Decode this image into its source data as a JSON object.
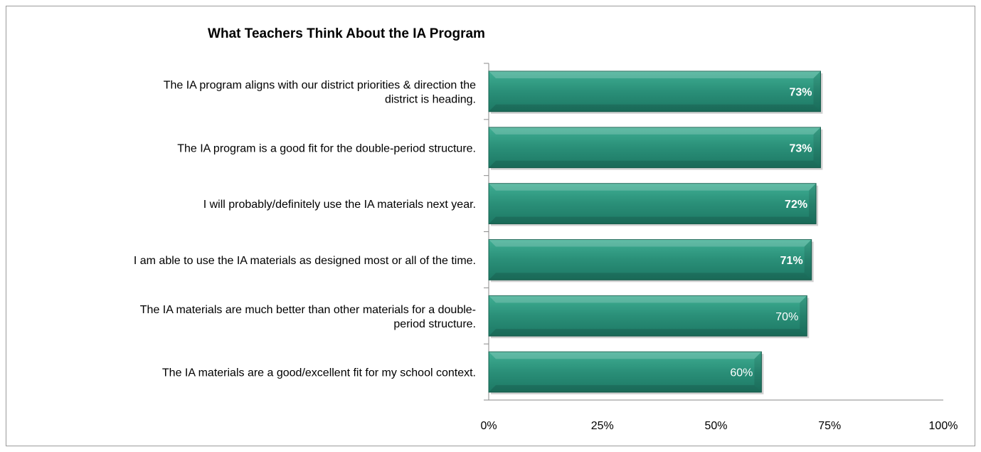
{
  "chart_data": {
    "type": "bar",
    "orientation": "horizontal",
    "title": "What Teachers Think About the IA Program",
    "categories": [
      [
        "The IA program aligns with our district priorities & direction the",
        "district is heading."
      ],
      [
        "The IA program is a good fit for the double-period structure."
      ],
      [
        "I will probably/definitely use the IA materials next year."
      ],
      [
        "I am able to use the IA materials as designed most or all of the time."
      ],
      [
        "The IA materials are much better than other materials for a double-",
        "period structure."
      ],
      [
        "The IA materials are a good/excellent fit for my school context."
      ]
    ],
    "values": [
      73,
      73,
      72,
      71,
      70,
      60
    ],
    "value_labels": [
      "73%",
      "73%",
      "72%",
      "71%",
      "70%",
      "60%"
    ],
    "value_label_bold": [
      true,
      true,
      true,
      true,
      false,
      false
    ],
    "xlim": [
      0,
      100
    ],
    "x_ticks": [
      0,
      25,
      50,
      75,
      100
    ],
    "x_tick_labels": [
      "0%",
      "25%",
      "50%",
      "75%",
      "100%"
    ],
    "xlabel": "",
    "ylabel": "",
    "grid": false,
    "legend": "none",
    "colors": {
      "bar_light": "#3fae93",
      "bar_mid": "#2a8f78",
      "bar_dark": "#1d7864",
      "bar_edge": "#16604f",
      "axis": "#8a8a8a",
      "frame": "#9a9a9a"
    }
  }
}
